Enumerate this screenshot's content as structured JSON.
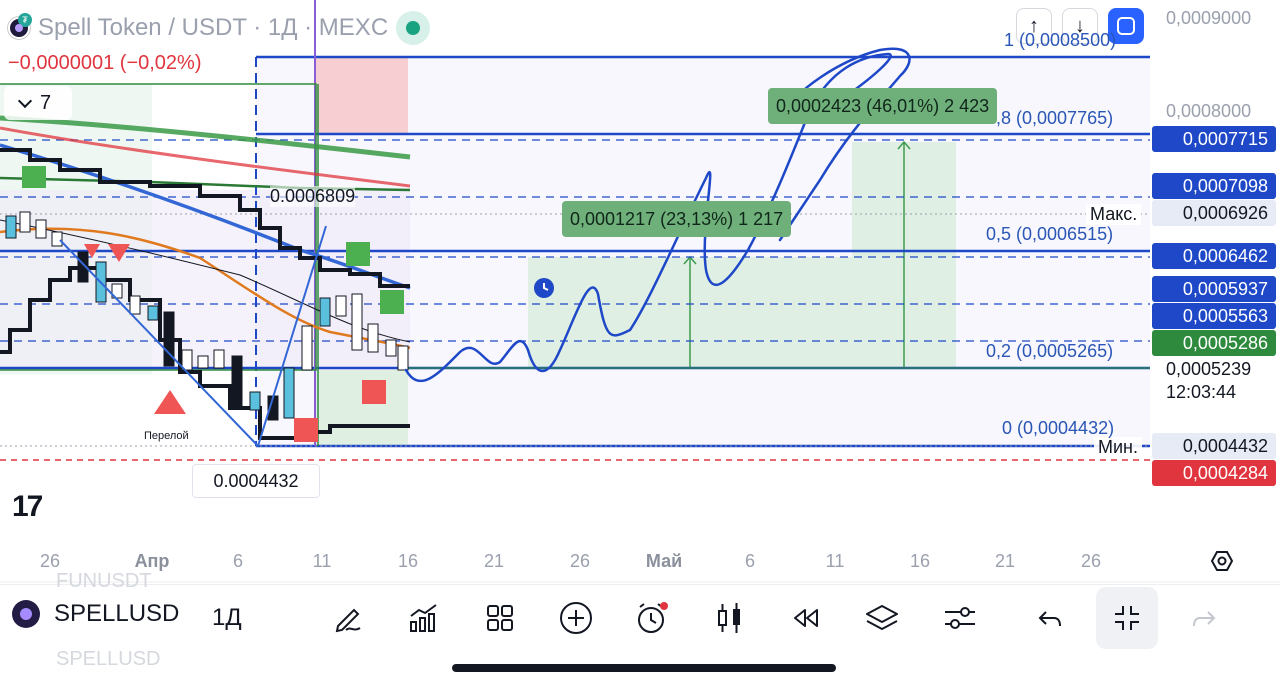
{
  "header": {
    "title": "Spell Token / USDT · 1Д · MEXC",
    "change": "−0,0000001 (−0,02%)",
    "indicators_count": "7",
    "arrow_up": "↑",
    "arrow_down": "↓"
  },
  "price_axis": {
    "labels": [
      "0,0009000",
      "0,0008000",
      "0,0006926",
      "0,0005239",
      "12:03:44",
      "0,0004432"
    ],
    "tags": [
      {
        "text": "0,0007715",
        "color": "#1e48c8"
      },
      {
        "text": "0,0007098",
        "color": "#1e48c8"
      },
      {
        "text": "0,0006462",
        "color": "#1e48c8"
      },
      {
        "text": "0,0005937",
        "color": "#1e48c8"
      },
      {
        "text": "0,0005563",
        "color": "#1e48c8"
      },
      {
        "text": "0,0005286",
        "color": "#2e8b3e"
      },
      {
        "text": "0,0004284",
        "color": "#e0353e"
      }
    ],
    "max_label": "Макс.",
    "min_label": "Мин.",
    "max_value": "0,0006926",
    "min_value": "0,0004432",
    "current_price": "0,0005239",
    "countdown": "12:03:44"
  },
  "fib": {
    "levels": [
      "1 (0,0008500)",
      "0,8 (0,0007765)",
      "0,5 (0,0006515)",
      "0,2 (0,0005265)",
      "0 (0,0004432)"
    ]
  },
  "ranges": {
    "upper": "0,0002423 (46,01%) 2 423",
    "lower": "0,0001217 (23,13%) 1 217"
  },
  "chart_labels": {
    "level_6809": "0.0006809",
    "breakout": "Перелой",
    "low_box": "0.0004432"
  },
  "time_axis": [
    {
      "text": "26",
      "bold": false
    },
    {
      "text": "Апр",
      "bold": true
    },
    {
      "text": "6",
      "bold": false
    },
    {
      "text": "11",
      "bold": false
    },
    {
      "text": "16",
      "bold": false
    },
    {
      "text": "21",
      "bold": false
    },
    {
      "text": "26",
      "bold": false
    },
    {
      "text": "Май",
      "bold": true
    },
    {
      "text": "6",
      "bold": false
    },
    {
      "text": "11",
      "bold": false
    },
    {
      "text": "16",
      "bold": false
    },
    {
      "text": "21",
      "bold": false
    },
    {
      "text": "26",
      "bold": false
    }
  ],
  "toolbar": {
    "symbol": "SPELLUSD",
    "timeframe": "1Д",
    "ghost_above": "FUNUSDT",
    "ghost_below": "SPELLUSD"
  },
  "colors": {
    "blue": "#1e48c8",
    "green": "#2e8b3e",
    "red": "#e0353e"
  }
}
